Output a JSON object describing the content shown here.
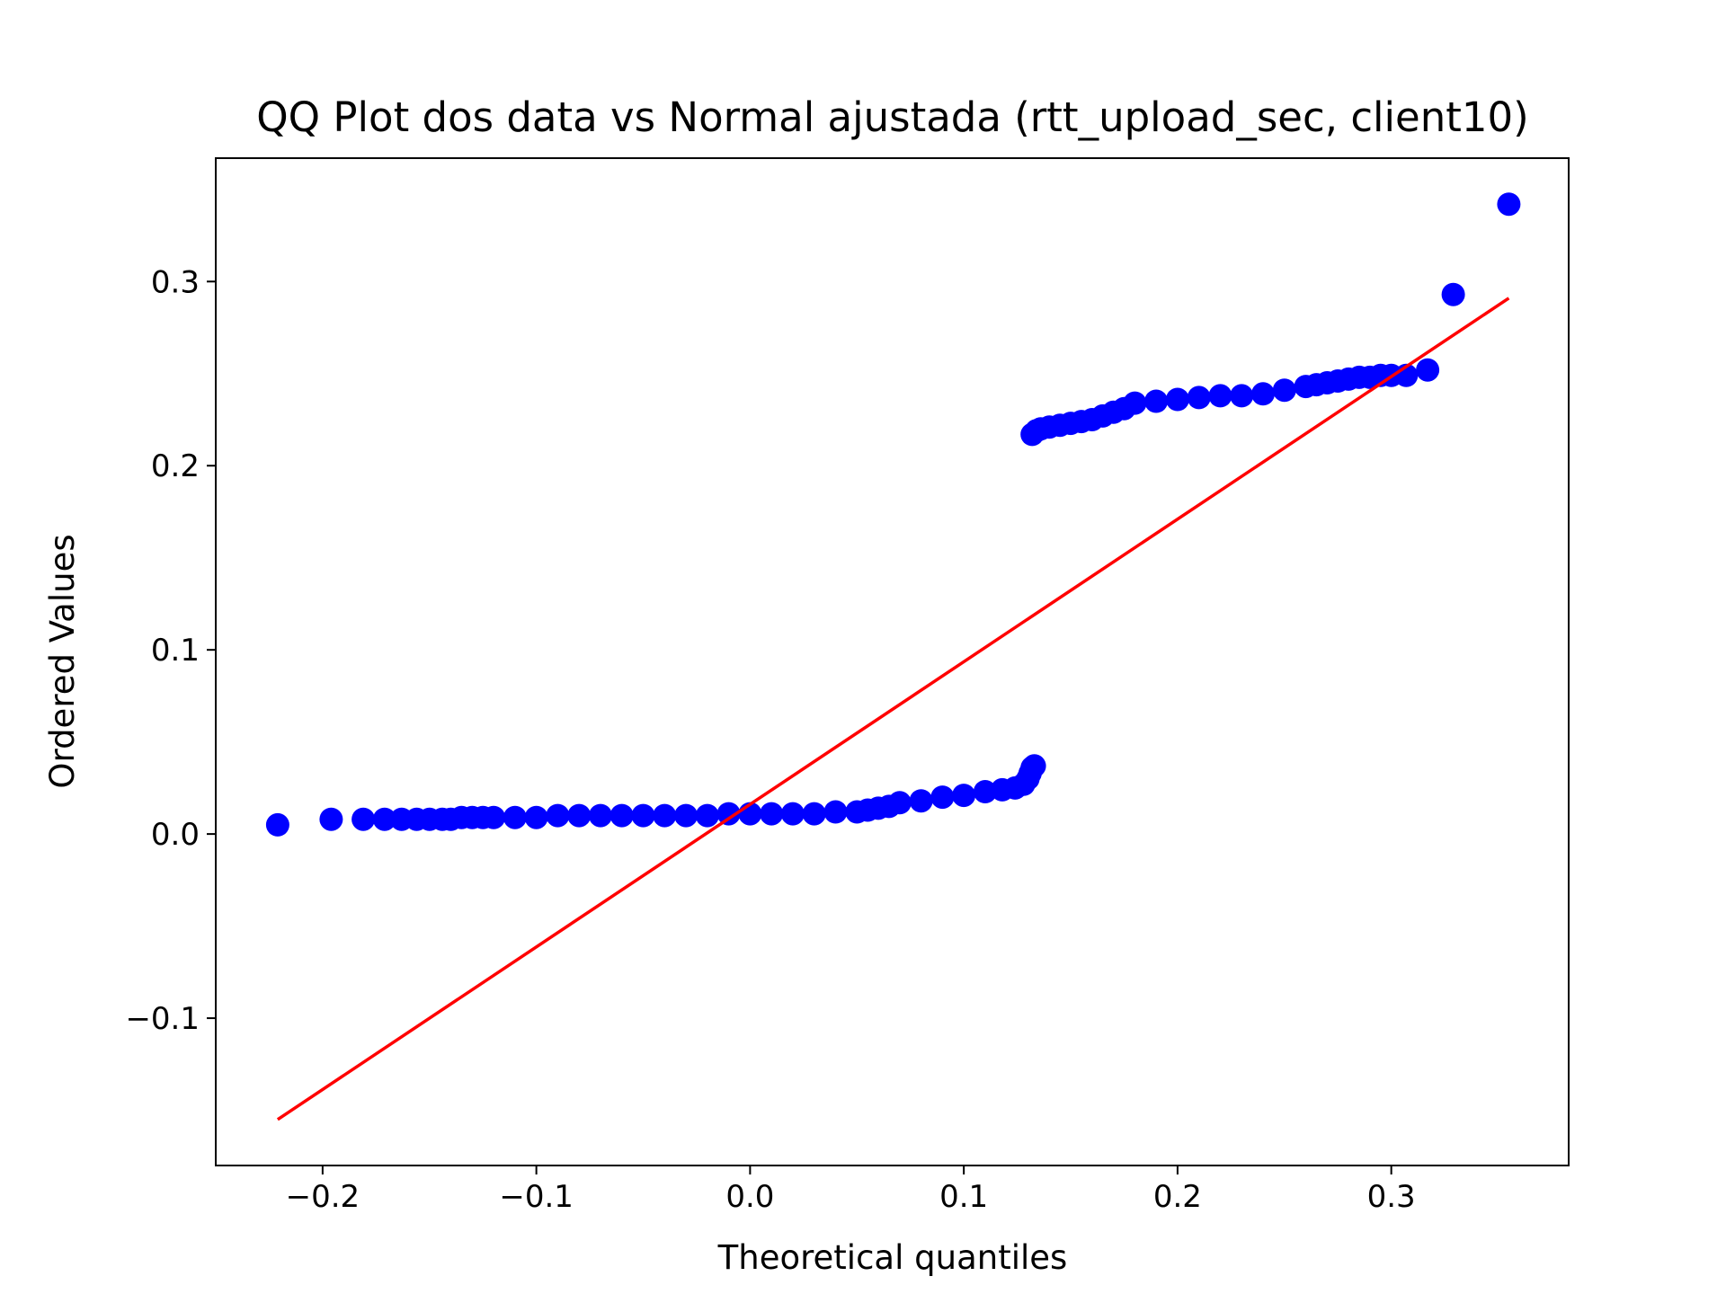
{
  "chart_data": {
    "type": "scatter",
    "title": "QQ Plot dos data vs Normal ajustada (rtt_upload_sec, client10)",
    "xlabel": "Theoretical quantiles",
    "ylabel": "Ordered Values",
    "xlim": [
      -0.25,
      0.383
    ],
    "ylim": [
      -0.18,
      0.367
    ],
    "xticks": [
      -0.2,
      -0.1,
      0.0,
      0.1,
      0.2,
      0.3
    ],
    "yticks": [
      -0.1,
      0.0,
      0.1,
      0.2,
      0.3
    ],
    "tick_labels_x": [
      "−0.2",
      "−0.1",
      "0.0",
      "0.1",
      "0.2",
      "0.3"
    ],
    "tick_labels_y": [
      "−0.1",
      "0.0",
      "0.1",
      "0.2",
      "0.3"
    ],
    "grid": false,
    "colors": {
      "points": "#0000ff",
      "fit_line": "#ff0000",
      "frame": "#000000"
    },
    "series": [
      {
        "kind": "points",
        "x": [
          -0.221,
          -0.196,
          -0.181,
          -0.171,
          -0.163,
          -0.156,
          -0.15,
          -0.144,
          -0.14,
          -0.135,
          -0.13,
          -0.125,
          -0.12,
          -0.11,
          -0.1,
          -0.09,
          -0.08,
          -0.07,
          -0.06,
          -0.05,
          -0.04,
          -0.03,
          -0.02,
          -0.01,
          0.0,
          0.01,
          0.02,
          0.03,
          0.04,
          0.05,
          0.055,
          0.06,
          0.065,
          0.07,
          0.08,
          0.09,
          0.1,
          0.11,
          0.118,
          0.124,
          0.128,
          0.13,
          0.131,
          0.132,
          0.133,
          0.132,
          0.134,
          0.136,
          0.14,
          0.145,
          0.15,
          0.155,
          0.16,
          0.165,
          0.17,
          0.175,
          0.18,
          0.19,
          0.2,
          0.21,
          0.22,
          0.23,
          0.24,
          0.25,
          0.26,
          0.265,
          0.27,
          0.275,
          0.28,
          0.285,
          0.29,
          0.295,
          0.3,
          0.307,
          0.317,
          0.329,
          0.355
        ],
        "y": [
          0.005,
          0.008,
          0.008,
          0.008,
          0.008,
          0.008,
          0.008,
          0.008,
          0.008,
          0.009,
          0.009,
          0.009,
          0.009,
          0.009,
          0.009,
          0.01,
          0.01,
          0.01,
          0.01,
          0.01,
          0.01,
          0.01,
          0.01,
          0.011,
          0.011,
          0.011,
          0.011,
          0.011,
          0.012,
          0.012,
          0.013,
          0.014,
          0.015,
          0.017,
          0.018,
          0.02,
          0.021,
          0.023,
          0.024,
          0.025,
          0.027,
          0.03,
          0.033,
          0.036,
          0.037,
          0.217,
          0.219,
          0.22,
          0.221,
          0.222,
          0.223,
          0.224,
          0.225,
          0.227,
          0.229,
          0.231,
          0.234,
          0.235,
          0.236,
          0.237,
          0.238,
          0.238,
          0.239,
          0.241,
          0.243,
          0.244,
          0.245,
          0.246,
          0.247,
          0.248,
          0.248,
          0.249,
          0.249,
          0.249,
          0.252,
          0.293,
          0.342
        ]
      },
      {
        "kind": "line",
        "x": [
          -0.221,
          0.355
        ],
        "y": [
          -0.155,
          0.291
        ]
      }
    ]
  }
}
